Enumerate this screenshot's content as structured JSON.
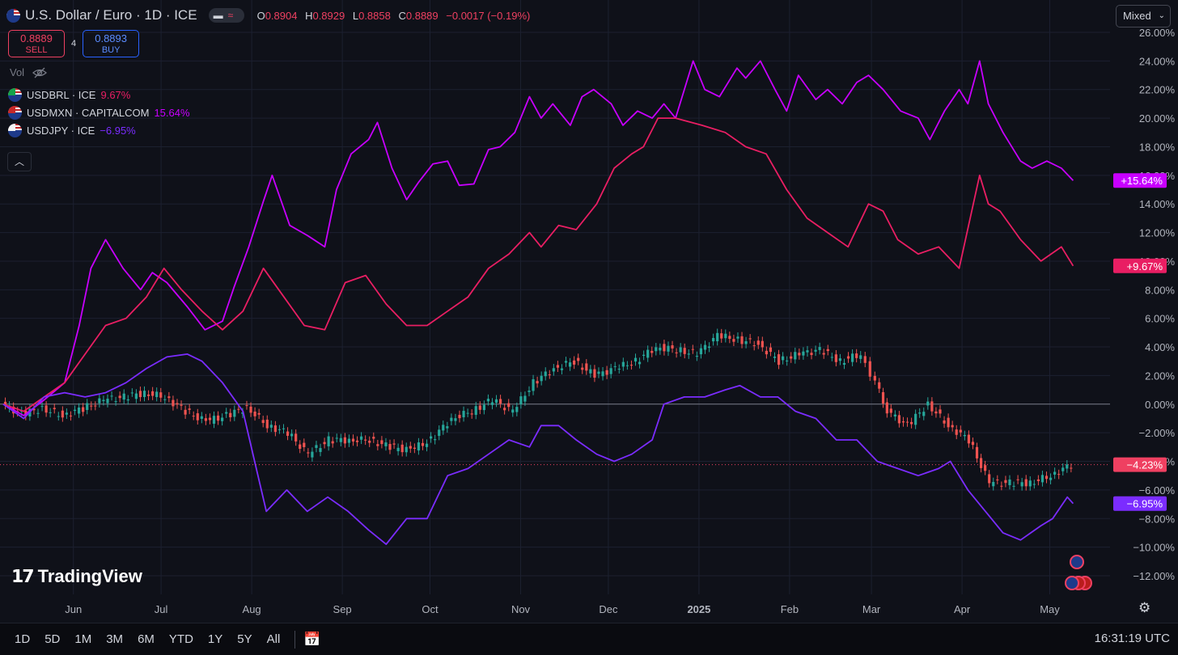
{
  "header": {
    "title": "U.S. Dollar / Euro · 1D · ICE",
    "ohlc": {
      "o_label": "O",
      "o": "0.8904",
      "h_label": "H",
      "h": "0.8929",
      "l_label": "L",
      "l": "0.8858",
      "c_label": "C",
      "c": "0.8889",
      "change": "−0.0017 (−0.19%)"
    },
    "sell": {
      "price": "0.8889",
      "label": "SELL"
    },
    "buy": {
      "price": "0.8893",
      "label": "BUY"
    },
    "spread": "4",
    "vol_label": "Vol",
    "series": [
      {
        "name": "USDBRL · ICE",
        "value": "9.67%",
        "color": "#e91e63"
      },
      {
        "name": "USDMXN · CAPITALCOM",
        "value": "15.64%",
        "color": "#c800ff"
      },
      {
        "name": "USDJPY · ICE",
        "value": "−6.95%",
        "color": "#7b2cff"
      }
    ],
    "scale_mode": "Mixed"
  },
  "chart_data": {
    "type": "line",
    "title": "U.S. Dollar / Euro · 1D · ICE",
    "xlabel": "",
    "ylabel": "",
    "y_unit": "%",
    "ylim": [
      -13.5,
      26.8
    ],
    "y_ticks": [
      "26.00%",
      "24.00%",
      "22.00%",
      "20.00%",
      "18.00%",
      "16.00%",
      "14.00%",
      "12.00%",
      "10.00%",
      "8.00%",
      "6.00%",
      "4.00%",
      "2.00%",
      "0.00%",
      "−2.00%",
      "−4.00%",
      "−6.00%",
      "−8.00%",
      "−10.00%",
      "−12.00%"
    ],
    "y_tick_values": [
      26,
      24,
      22,
      20,
      18,
      16,
      14,
      12,
      10,
      8,
      6,
      4,
      2,
      0,
      -2,
      -4,
      -6,
      -8,
      -10,
      -12
    ],
    "x_range": [
      "2024-05-08",
      "2025-05-10"
    ],
    "x_ticks": [
      {
        "label": "Jun",
        "date": "2024-06-01"
      },
      {
        "label": "Jul",
        "date": "2024-07-01"
      },
      {
        "label": "Aug",
        "date": "2024-08-01"
      },
      {
        "label": "Sep",
        "date": "2024-09-01"
      },
      {
        "label": "Oct",
        "date": "2024-10-01"
      },
      {
        "label": "Nov",
        "date": "2024-11-01"
      },
      {
        "label": "Dec",
        "date": "2024-12-01"
      },
      {
        "label": "2025",
        "date": "2025-01-01"
      },
      {
        "label": "Feb",
        "date": "2025-02-01"
      },
      {
        "label": "Mar",
        "date": "2025-03-01"
      },
      {
        "label": "Apr",
        "date": "2025-04-01"
      },
      {
        "label": "May",
        "date": "2025-05-01"
      }
    ],
    "series": [
      {
        "name": "USDMXN · CAPITALCOM",
        "color": "#c800ff",
        "last_label": "+15.64%",
        "points": [
          [
            "2024-05-08",
            0
          ],
          [
            "2024-05-15",
            -0.8
          ],
          [
            "2024-05-22",
            0.3
          ],
          [
            "2024-05-29",
            1.5
          ],
          [
            "2024-06-03",
            5.5
          ],
          [
            "2024-06-07",
            9.5
          ],
          [
            "2024-06-12",
            11.5
          ],
          [
            "2024-06-18",
            9.5
          ],
          [
            "2024-06-24",
            8.0
          ],
          [
            "2024-06-28",
            9.2
          ],
          [
            "2024-07-03",
            8.5
          ],
          [
            "2024-07-10",
            6.8
          ],
          [
            "2024-07-16",
            5.2
          ],
          [
            "2024-07-22",
            5.8
          ],
          [
            "2024-07-26",
            8.2
          ],
          [
            "2024-07-31",
            11.0
          ],
          [
            "2024-08-05",
            14.2
          ],
          [
            "2024-08-08",
            16.0
          ],
          [
            "2024-08-14",
            12.5
          ],
          [
            "2024-08-20",
            11.8
          ],
          [
            "2024-08-26",
            11.0
          ],
          [
            "2024-08-30",
            15.0
          ],
          [
            "2024-09-04",
            17.5
          ],
          [
            "2024-09-10",
            18.5
          ],
          [
            "2024-09-13",
            19.7
          ],
          [
            "2024-09-18",
            16.5
          ],
          [
            "2024-09-23",
            14.3
          ],
          [
            "2024-09-27",
            15.5
          ],
          [
            "2024-10-02",
            16.8
          ],
          [
            "2024-10-07",
            17.0
          ],
          [
            "2024-10-11",
            15.3
          ],
          [
            "2024-10-16",
            15.4
          ],
          [
            "2024-10-21",
            17.8
          ],
          [
            "2024-10-25",
            18.0
          ],
          [
            "2024-10-30",
            19.0
          ],
          [
            "2024-11-04",
            21.5
          ],
          [
            "2024-11-08",
            20.0
          ],
          [
            "2024-11-12",
            21.0
          ],
          [
            "2024-11-18",
            19.5
          ],
          [
            "2024-11-22",
            21.5
          ],
          [
            "2024-11-26",
            22.0
          ],
          [
            "2024-12-02",
            21.0
          ],
          [
            "2024-12-06",
            19.5
          ],
          [
            "2024-12-11",
            20.5
          ],
          [
            "2024-12-16",
            20.0
          ],
          [
            "2024-12-20",
            21.0
          ],
          [
            "2024-12-24",
            20.0
          ],
          [
            "2024-12-30",
            24.0
          ],
          [
            "2025-01-03",
            22.0
          ],
          [
            "2025-01-08",
            21.5
          ],
          [
            "2025-01-14",
            23.5
          ],
          [
            "2025-01-17",
            22.8
          ],
          [
            "2025-01-22",
            24.0
          ],
          [
            "2025-01-27",
            22.0
          ],
          [
            "2025-01-31",
            20.5
          ],
          [
            "2025-02-04",
            23.0
          ],
          [
            "2025-02-10",
            21.3
          ],
          [
            "2025-02-14",
            22.0
          ],
          [
            "2025-02-19",
            21.0
          ],
          [
            "2025-02-24",
            22.5
          ],
          [
            "2025-02-28",
            23.0
          ],
          [
            "2025-03-05",
            22.0
          ],
          [
            "2025-03-11",
            20.5
          ],
          [
            "2025-03-17",
            20.0
          ],
          [
            "2025-03-21",
            18.5
          ],
          [
            "2025-03-26",
            20.5
          ],
          [
            "2025-03-31",
            22.0
          ],
          [
            "2025-04-03",
            21.0
          ],
          [
            "2025-04-07",
            24.0
          ],
          [
            "2025-04-10",
            21.0
          ],
          [
            "2025-04-15",
            19.0
          ],
          [
            "2025-04-21",
            17.0
          ],
          [
            "2025-04-25",
            16.5
          ],
          [
            "2025-04-30",
            17.0
          ],
          [
            "2025-05-05",
            16.5
          ],
          [
            "2025-05-09",
            15.64
          ]
        ]
      },
      {
        "name": "USDBRL · ICE",
        "color": "#e91e63",
        "last_label": "+9.67%",
        "points": [
          [
            "2024-05-08",
            0
          ],
          [
            "2024-05-15",
            -0.5
          ],
          [
            "2024-05-22",
            0.5
          ],
          [
            "2024-05-29",
            1.5
          ],
          [
            "2024-06-05",
            3.5
          ],
          [
            "2024-06-12",
            5.5
          ],
          [
            "2024-06-19",
            6.0
          ],
          [
            "2024-06-26",
            7.5
          ],
          [
            "2024-07-02",
            9.5
          ],
          [
            "2024-07-08",
            8.0
          ],
          [
            "2024-07-15",
            6.5
          ],
          [
            "2024-07-22",
            5.2
          ],
          [
            "2024-07-29",
            6.5
          ],
          [
            "2024-08-05",
            9.5
          ],
          [
            "2024-08-12",
            7.5
          ],
          [
            "2024-08-19",
            5.5
          ],
          [
            "2024-08-26",
            5.2
          ],
          [
            "2024-09-02",
            8.5
          ],
          [
            "2024-09-09",
            9.0
          ],
          [
            "2024-09-16",
            7.0
          ],
          [
            "2024-09-23",
            5.5
          ],
          [
            "2024-09-30",
            5.5
          ],
          [
            "2024-10-07",
            6.5
          ],
          [
            "2024-10-14",
            7.5
          ],
          [
            "2024-10-21",
            9.5
          ],
          [
            "2024-10-28",
            10.5
          ],
          [
            "2024-11-04",
            12.0
          ],
          [
            "2024-11-08",
            11.0
          ],
          [
            "2024-11-14",
            12.5
          ],
          [
            "2024-11-20",
            12.2
          ],
          [
            "2024-11-27",
            14.0
          ],
          [
            "2024-12-03",
            16.5
          ],
          [
            "2024-12-09",
            17.5
          ],
          [
            "2024-12-13",
            18.0
          ],
          [
            "2024-12-18",
            20.0
          ],
          [
            "2024-12-24",
            20.0
          ],
          [
            "2025-01-02",
            19.5
          ],
          [
            "2025-01-10",
            19.0
          ],
          [
            "2025-01-17",
            18.0
          ],
          [
            "2025-01-24",
            17.5
          ],
          [
            "2025-01-31",
            15.0
          ],
          [
            "2025-02-07",
            13.0
          ],
          [
            "2025-02-14",
            12.0
          ],
          [
            "2025-02-21",
            11.0
          ],
          [
            "2025-02-28",
            14.0
          ],
          [
            "2025-03-05",
            13.5
          ],
          [
            "2025-03-10",
            11.5
          ],
          [
            "2025-03-17",
            10.5
          ],
          [
            "2025-03-24",
            11.0
          ],
          [
            "2025-03-31",
            9.5
          ],
          [
            "2025-04-07",
            16.0
          ],
          [
            "2025-04-10",
            14.0
          ],
          [
            "2025-04-14",
            13.5
          ],
          [
            "2025-04-21",
            11.5
          ],
          [
            "2025-04-28",
            10.0
          ],
          [
            "2025-05-05",
            11.0
          ],
          [
            "2025-05-09",
            9.67
          ]
        ]
      },
      {
        "name": "USDJPY · ICE",
        "color": "#7b2cff",
        "last_label": "−6.95%",
        "points": [
          [
            "2024-05-08",
            0
          ],
          [
            "2024-05-15",
            -1.0
          ],
          [
            "2024-05-22",
            0.5
          ],
          [
            "2024-05-29",
            0.8
          ],
          [
            "2024-06-05",
            0.5
          ],
          [
            "2024-06-12",
            0.8
          ],
          [
            "2024-06-19",
            1.5
          ],
          [
            "2024-06-26",
            2.5
          ],
          [
            "2024-07-03",
            3.3
          ],
          [
            "2024-07-10",
            3.5
          ],
          [
            "2024-07-15",
            3.0
          ],
          [
            "2024-07-22",
            1.5
          ],
          [
            "2024-07-29",
            -0.5
          ],
          [
            "2024-08-02",
            -4.0
          ],
          [
            "2024-08-06",
            -7.5
          ],
          [
            "2024-08-13",
            -6.0
          ],
          [
            "2024-08-20",
            -7.5
          ],
          [
            "2024-08-27",
            -6.5
          ],
          [
            "2024-09-03",
            -7.5
          ],
          [
            "2024-09-10",
            -8.8
          ],
          [
            "2024-09-16",
            -9.8
          ],
          [
            "2024-09-23",
            -8.0
          ],
          [
            "2024-09-30",
            -8.0
          ],
          [
            "2024-10-07",
            -5.0
          ],
          [
            "2024-10-14",
            -4.5
          ],
          [
            "2024-10-21",
            -3.5
          ],
          [
            "2024-10-28",
            -2.5
          ],
          [
            "2024-11-04",
            -3.0
          ],
          [
            "2024-11-08",
            -1.5
          ],
          [
            "2024-11-14",
            -1.5
          ],
          [
            "2024-11-20",
            -2.5
          ],
          [
            "2024-11-27",
            -3.5
          ],
          [
            "2024-12-03",
            -4.0
          ],
          [
            "2024-12-09",
            -3.5
          ],
          [
            "2024-12-16",
            -2.5
          ],
          [
            "2024-12-20",
            0.0
          ],
          [
            "2024-12-27",
            0.5
          ],
          [
            "2025-01-03",
            0.5
          ],
          [
            "2025-01-10",
            1.0
          ],
          [
            "2025-01-15",
            1.3
          ],
          [
            "2025-01-22",
            0.5
          ],
          [
            "2025-01-28",
            0.5
          ],
          [
            "2025-02-03",
            -0.5
          ],
          [
            "2025-02-10",
            -1.0
          ],
          [
            "2025-02-17",
            -2.5
          ],
          [
            "2025-02-24",
            -2.5
          ],
          [
            "2025-03-03",
            -4.0
          ],
          [
            "2025-03-10",
            -4.5
          ],
          [
            "2025-03-17",
            -5.0
          ],
          [
            "2025-03-24",
            -4.5
          ],
          [
            "2025-03-28",
            -4.0
          ],
          [
            "2025-04-03",
            -6.0
          ],
          [
            "2025-04-09",
            -7.5
          ],
          [
            "2025-04-15",
            -9.0
          ],
          [
            "2025-04-21",
            -9.5
          ],
          [
            "2025-04-28",
            -8.5
          ],
          [
            "2025-05-02",
            -8.0
          ],
          [
            "2025-05-07",
            -6.5
          ],
          [
            "2025-05-09",
            -6.95
          ]
        ]
      }
    ],
    "main_series": {
      "name": "U.S. Dollar / Euro",
      "type": "candlestick",
      "up_color": "#26a69a",
      "down_color": "#ef5350",
      "last_label": "−4.23%",
      "last_label_color": "#ef4061",
      "points": [
        [
          "2024-05-08",
          0
        ],
        [
          "2024-05-15",
          -0.7
        ],
        [
          "2024-05-22",
          -0.3
        ],
        [
          "2024-05-29",
          -0.8
        ],
        [
          "2024-06-05",
          -0.3
        ],
        [
          "2024-06-12",
          0.3
        ],
        [
          "2024-06-19",
          0.5
        ],
        [
          "2024-06-26",
          0.8
        ],
        [
          "2024-07-03",
          0.5
        ],
        [
          "2024-07-10",
          -0.5
        ],
        [
          "2024-07-17",
          -1.2
        ],
        [
          "2024-07-24",
          -0.8
        ],
        [
          "2024-07-31",
          -0.2
        ],
        [
          "2024-08-07",
          -1.5
        ],
        [
          "2024-08-14",
          -2.0
        ],
        [
          "2024-08-21",
          -3.5
        ],
        [
          "2024-08-28",
          -2.5
        ],
        [
          "2024-09-04",
          -2.5
        ],
        [
          "2024-09-11",
          -2.5
        ],
        [
          "2024-09-18",
          -3.0
        ],
        [
          "2024-09-25",
          -3.2
        ],
        [
          "2024-10-02",
          -2.5
        ],
        [
          "2024-10-09",
          -1.0
        ],
        [
          "2024-10-16",
          -0.5
        ],
        [
          "2024-10-23",
          0.3
        ],
        [
          "2024-10-30",
          -0.5
        ],
        [
          "2024-11-06",
          1.5
        ],
        [
          "2024-11-13",
          2.5
        ],
        [
          "2024-11-20",
          3.0
        ],
        [
          "2024-11-27",
          2.0
        ],
        [
          "2024-12-04",
          2.5
        ],
        [
          "2024-12-11",
          3.0
        ],
        [
          "2024-12-18",
          4.0
        ],
        [
          "2024-12-25",
          3.8
        ],
        [
          "2025-01-01",
          3.5
        ],
        [
          "2025-01-08",
          4.8
        ],
        [
          "2025-01-15",
          4.5
        ],
        [
          "2025-01-22",
          4.2
        ],
        [
          "2025-01-29",
          3.0
        ],
        [
          "2025-02-05",
          3.5
        ],
        [
          "2025-02-12",
          3.8
        ],
        [
          "2025-02-19",
          3.0
        ],
        [
          "2025-02-26",
          3.5
        ],
        [
          "2025-03-03",
          1.5
        ],
        [
          "2025-03-07",
          -0.5
        ],
        [
          "2025-03-14",
          -1.5
        ],
        [
          "2025-03-21",
          0.0
        ],
        [
          "2025-03-28",
          -1.5
        ],
        [
          "2025-04-04",
          -2.5
        ],
        [
          "2025-04-11",
          -5.5
        ],
        [
          "2025-04-18",
          -5.5
        ],
        [
          "2025-04-25",
          -5.5
        ],
        [
          "2025-05-02",
          -5.0
        ],
        [
          "2025-05-09",
          -4.23
        ]
      ]
    },
    "grid": true,
    "legend": "top-left"
  },
  "watermark": "TradingView",
  "bottombar": {
    "ranges": [
      "1D",
      "5D",
      "1M",
      "3M",
      "6M",
      "YTD",
      "1Y",
      "5Y",
      "All"
    ],
    "clock": "16:31:19 UTC"
  }
}
